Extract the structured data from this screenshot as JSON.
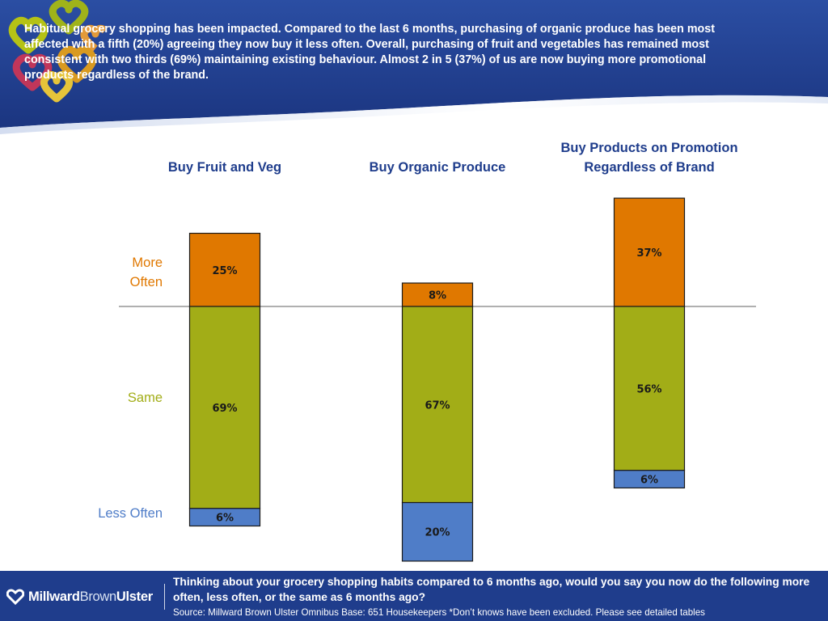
{
  "header": {
    "headline": "Habitual grocery shopping has been impacted.  Compared to the last 6 months, purchasing of organic produce has been most affected with a fifth (20%) agreeing they now buy it less often.  Overall, purchasing of fruit and vegetables has remained most consistent with two thirds (69%) maintaining existing behaviour.  Almost 2 in 5 (37%) of us are now buying more promotional products regardless of the brand."
  },
  "chart_data": {
    "type": "bar",
    "stacked": true,
    "title": "",
    "categories": [
      "Buy Fruit and Veg",
      "Buy Organic Produce",
      "Buy Products on Promotion Regardless of Brand"
    ],
    "category_lines": [
      [
        "Buy Fruit and Veg"
      ],
      [
        "Buy Organic Produce"
      ],
      [
        "Buy Products on Promotion",
        "Regardless of Brand"
      ]
    ],
    "series": [
      {
        "name": "More Often",
        "name_lines": [
          "More",
          "Often"
        ],
        "color": "#e07800",
        "values": [
          25,
          8,
          37
        ],
        "labels": [
          "25%",
          "8%",
          "37%"
        ]
      },
      {
        "name": "Same",
        "name_lines": [
          "Same"
        ],
        "color": "#a2ad17",
        "values": [
          69,
          67,
          56
        ],
        "labels": [
          "69%",
          "67%",
          "56%"
        ]
      },
      {
        "name": "Less Often",
        "name_lines": [
          "Less Often"
        ],
        "color": "#4f7dc8",
        "values": [
          6,
          20,
          6
        ],
        "labels": [
          "6%",
          "20%",
          "6%"
        ]
      }
    ],
    "category_label_color": "#1f3d8c",
    "legend_placement": "left",
    "baseline": "top of Same segment"
  },
  "footer": {
    "logo_part1": "Millward",
    "logo_part2": "Brown",
    "logo_part3": "Ulster",
    "question": "Thinking about your grocery shopping habits compared to 6 months ago, would you say you now do the following more often, less often, or the same as 6 months ago?",
    "source": "Source: Millward Brown Ulster Omnibus  Base: 651 Housekeepers  *Don’t knows have been excluded.  Please see detailed tables"
  },
  "colors": {
    "header_blue": "#1f3d8c",
    "more_often_label": "#e07800",
    "same_label": "#a2ad17",
    "less_often_label": "#4f7dc8"
  }
}
